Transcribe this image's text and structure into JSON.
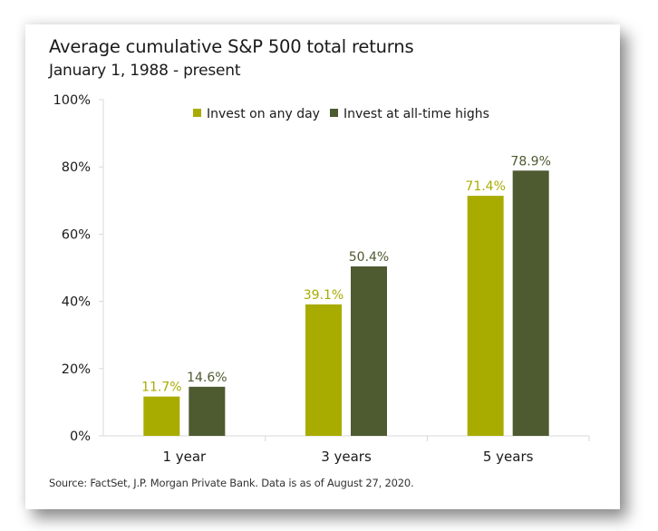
{
  "chart_data": {
    "type": "bar",
    "title": "Average cumulative S&P 500 total returns",
    "subtitle": "January 1, 1988 - present",
    "xlabel": "",
    "ylabel": "",
    "categories": [
      "1 year",
      "3 years",
      "5 years"
    ],
    "series": [
      {
        "name": "Invest on any day",
        "color": "#a8ac00",
        "values": [
          11.7,
          39.1,
          71.4
        ],
        "labels": [
          "11.7%",
          "39.1%",
          "71.4%"
        ]
      },
      {
        "name": "Invest at all-time highs",
        "color": "#4e5a30",
        "values": [
          14.6,
          50.4,
          78.9
        ],
        "labels": [
          "14.6%",
          "50.4%",
          "78.9%"
        ]
      }
    ],
    "ylim": [
      0,
      100
    ],
    "yticks": [
      0,
      20,
      40,
      60,
      80,
      100
    ],
    "ytick_labels": [
      "0%",
      "20%",
      "40%",
      "60%",
      "80%",
      "100%"
    ],
    "grid": false,
    "legend_position": "top-center",
    "source": "Source: FactSet, J.P. Morgan Private Bank. Data is as of August 27, 2020."
  }
}
